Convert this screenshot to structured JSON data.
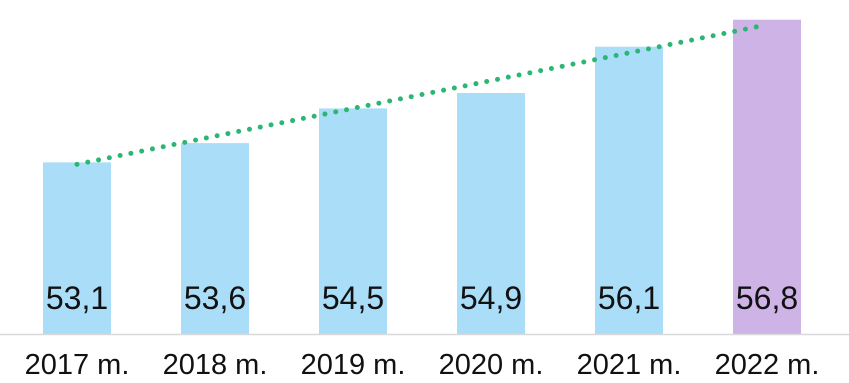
{
  "chart_data": {
    "type": "bar",
    "categories": [
      "2017 m.",
      "2018 m.",
      "2019 m.",
      "2020 m.",
      "2021 m.",
      "2022 m."
    ],
    "values": [
      53.1,
      53.6,
      54.5,
      54.9,
      56.1,
      56.8
    ],
    "value_labels": [
      "53,1",
      "53,6",
      "54,5",
      "54,9",
      "56,1",
      "56,8"
    ],
    "title": "",
    "xlabel": "",
    "ylabel": "",
    "ylim": [
      48.65,
      57.0
    ],
    "grid": false,
    "legend": "none",
    "trendline": {
      "style": "dotted",
      "color": "#2BB673",
      "values": [
        53.05,
        53.78,
        54.5,
        55.22,
        55.94,
        56.67
      ]
    },
    "colors": {
      "default_bar": "#A9DDF8",
      "highlight_bar": "#CDB3E6",
      "highlight_index": 5,
      "axis_line": "#D9D9D9",
      "text": "#111111"
    }
  }
}
